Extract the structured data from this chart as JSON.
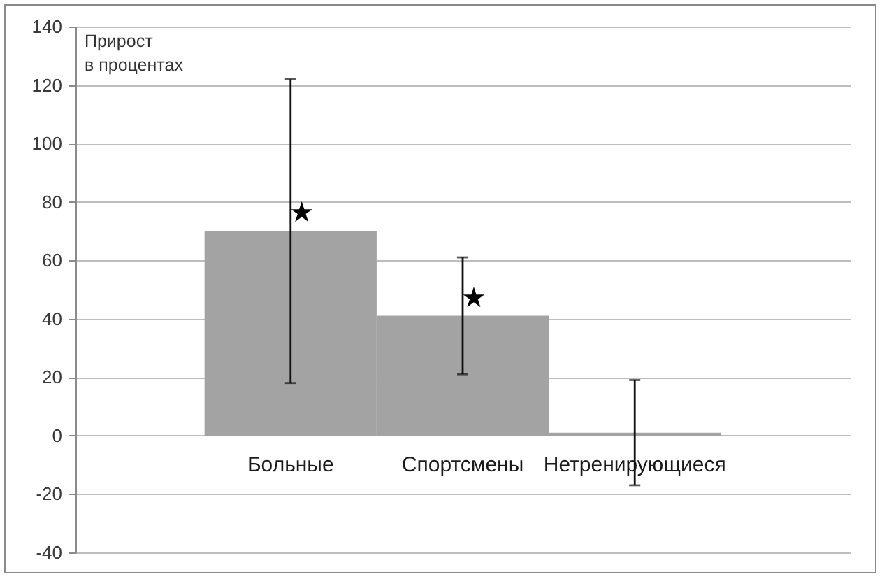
{
  "chart_data": {
    "type": "bar",
    "ylabel": "Прирост в процентах",
    "categories": [
      "Больные",
      "Спортсмены",
      "Нетренирующиеся"
    ],
    "values": [
      70,
      41,
      1
    ],
    "errors": [
      52,
      20,
      18
    ],
    "color": "#a3a3a3",
    "ylim": [
      -40,
      140
    ],
    "yticks": [
      -40,
      -20,
      0,
      20,
      40,
      60,
      80,
      100,
      120,
      140
    ],
    "grid": "y",
    "annotations": [
      {
        "text": "★",
        "x": "Больные",
        "y": 76
      },
      {
        "text": "★",
        "x": "Спортсмены",
        "y": 47
      }
    ]
  }
}
